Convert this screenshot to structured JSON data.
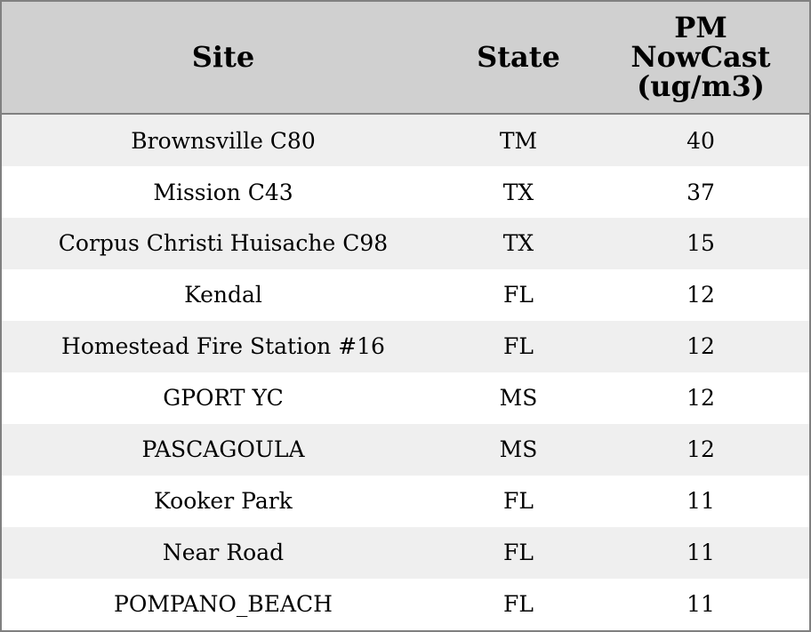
{
  "table": {
    "columns": [
      "Site",
      "State",
      "PM NowCast (ug/m3)"
    ],
    "rows": [
      [
        "Brownsville C80",
        "TM",
        40
      ],
      [
        "Mission C43",
        "TX",
        37
      ],
      [
        "Corpus Christi Huisache C98",
        "TX",
        15
      ],
      [
        "Kendal",
        "FL",
        12
      ],
      [
        "Homestead Fire Station #16",
        "FL",
        12
      ],
      [
        "GPORT YC",
        "MS",
        12
      ],
      [
        "PASCAGOULA",
        "MS",
        12
      ],
      [
        "Kooker Park",
        "FL",
        11
      ],
      [
        "Near Road",
        "FL",
        11
      ],
      [
        "POMPANO_BEACH",
        "FL",
        11
      ]
    ]
  }
}
